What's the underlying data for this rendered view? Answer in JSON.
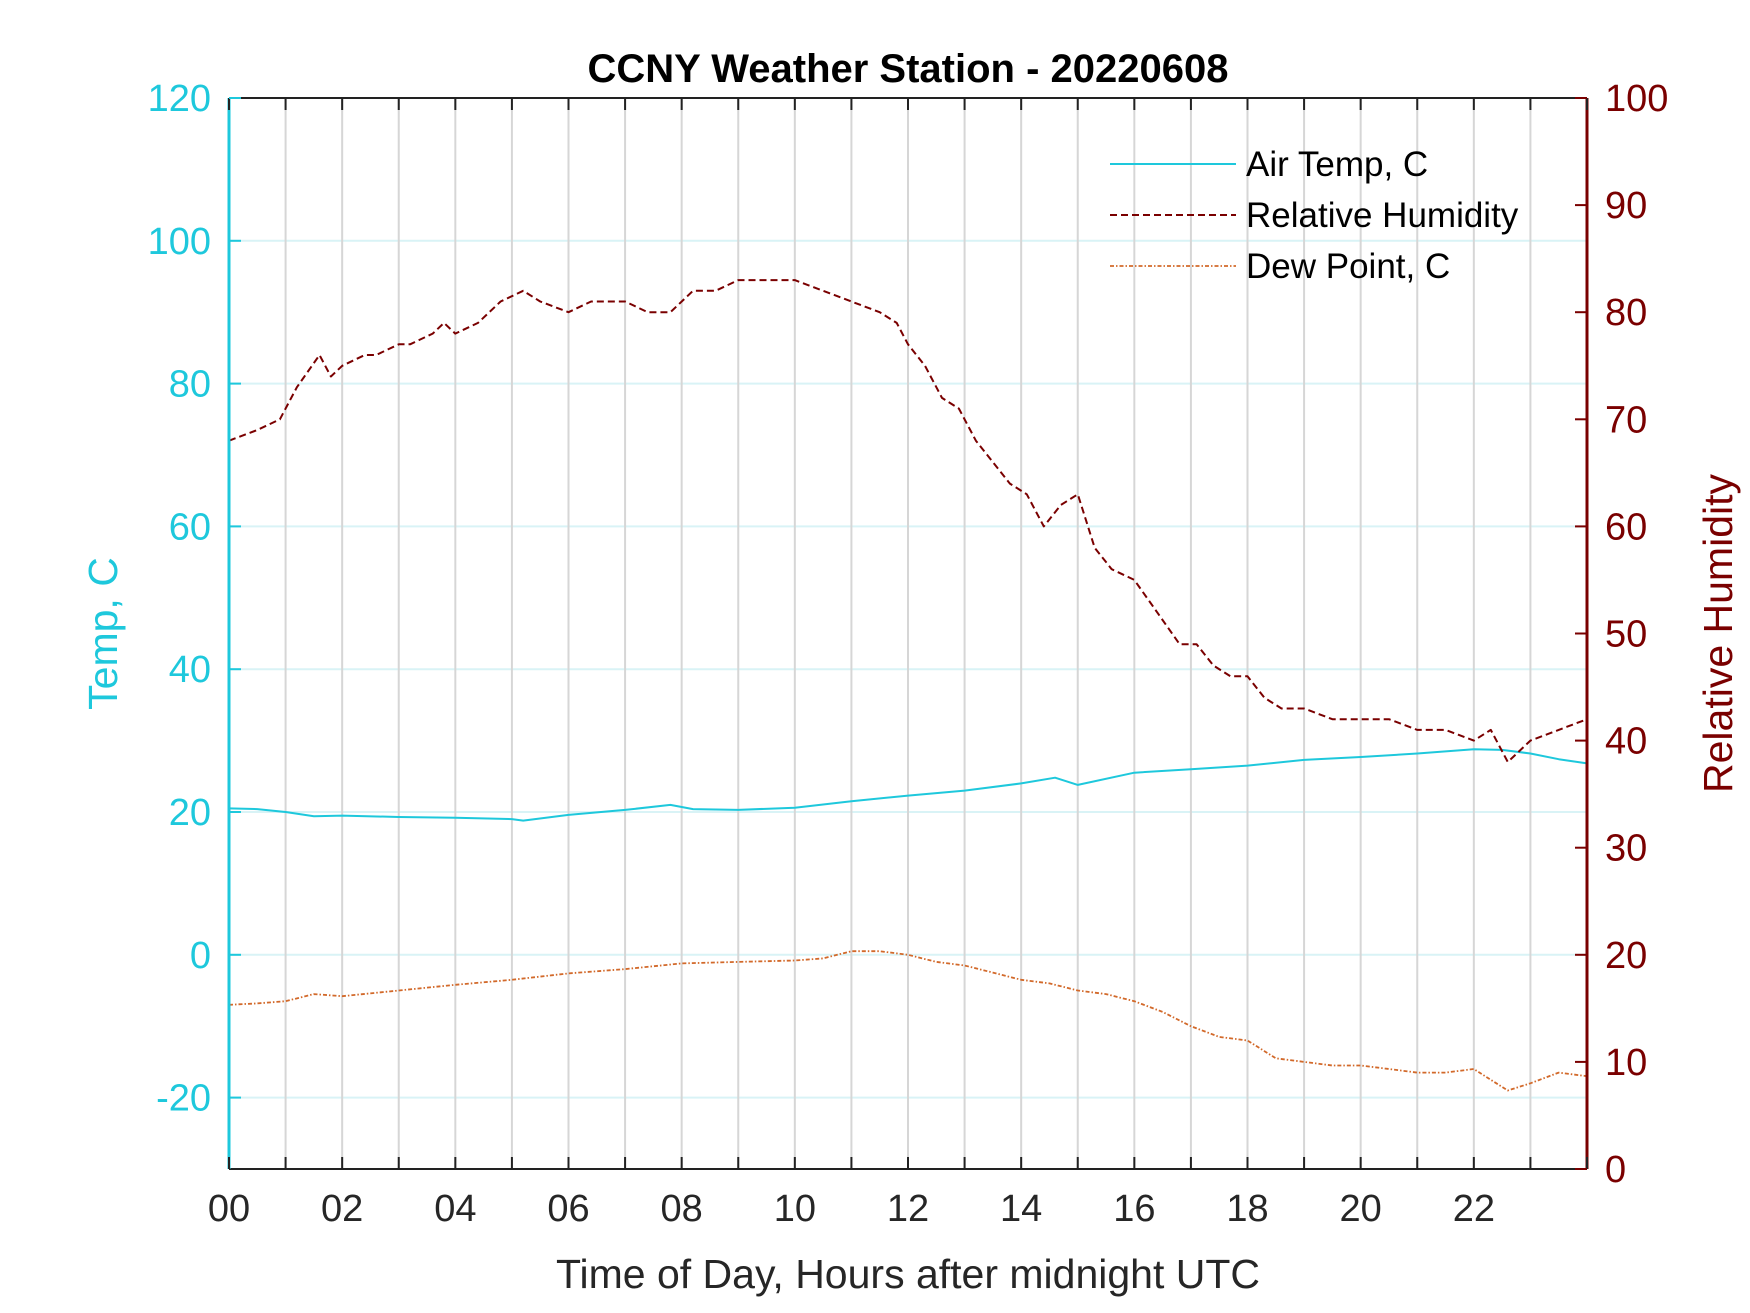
{
  "chart_data": {
    "type": "line",
    "title": "CCNY Weather Station - 20220608",
    "xlabel": "Time of Day, Hours after midnight UTC",
    "ylabel_left": "Temp, C",
    "ylabel_right": "Relative Humidity",
    "xlim": [
      0,
      24
    ],
    "ylim_left": [
      -30,
      120
    ],
    "ylim_right": [
      0,
      100
    ],
    "x_ticks": [
      0,
      2,
      4,
      6,
      8,
      10,
      12,
      14,
      16,
      18,
      20,
      22
    ],
    "x_tick_labels": [
      "00",
      "02",
      "04",
      "06",
      "08",
      "10",
      "12",
      "14",
      "16",
      "18",
      "20",
      "22"
    ],
    "y_left_ticks": [
      -20,
      0,
      20,
      40,
      60,
      80,
      100,
      120
    ],
    "y_left_tick_labels": [
      "-20",
      "0",
      "20",
      "40",
      "60",
      "80",
      "100",
      "120"
    ],
    "y_right_ticks": [
      0,
      10,
      20,
      30,
      40,
      50,
      60,
      70,
      80,
      90,
      100
    ],
    "y_right_tick_labels": [
      "0",
      "10",
      "20",
      "30",
      "40",
      "50",
      "60",
      "70",
      "80",
      "90",
      "100"
    ],
    "grid": true,
    "legend_position": "top-right",
    "colors": {
      "left_axis": "#1ec8dc",
      "right_axis": "#7a0000",
      "dew_point": "#d2692a",
      "grid_vertical": "#d6d6d6",
      "grid_horizontal": "#d9f3f6"
    },
    "series": [
      {
        "name": "Air Temp, C",
        "axis": "left",
        "style": "solid",
        "x": [
          0,
          0.5,
          1.0,
          1.5,
          2.0,
          3.0,
          4.0,
          5.0,
          5.2,
          6.0,
          7.0,
          7.8,
          8.2,
          9.0,
          10.0,
          11.0,
          12.0,
          13.0,
          14.0,
          14.6,
          15.0,
          16.0,
          17.0,
          18.0,
          19.0,
          20.0,
          21.0,
          22.0,
          22.5,
          23.0,
          23.5,
          24.0
        ],
        "values": [
          20.5,
          20.4,
          20.0,
          19.4,
          19.5,
          19.3,
          19.2,
          19.0,
          18.8,
          19.6,
          20.3,
          21.0,
          20.4,
          20.3,
          20.6,
          21.5,
          22.3,
          23.0,
          24.0,
          24.8,
          23.8,
          25.5,
          26.0,
          26.5,
          27.3,
          27.7,
          28.2,
          28.8,
          28.7,
          28.2,
          27.4,
          26.8
        ]
      },
      {
        "name": "Relative Humidity",
        "axis": "right",
        "style": "dashed",
        "x": [
          0,
          0.5,
          0.9,
          1.2,
          1.6,
          1.8,
          2.0,
          2.4,
          2.6,
          3.0,
          3.2,
          3.6,
          3.8,
          4.0,
          4.4,
          4.8,
          5.2,
          5.5,
          6.0,
          6.4,
          7.0,
          7.4,
          7.8,
          8.2,
          8.6,
          9.0,
          9.4,
          10.0,
          10.5,
          11.0,
          11.5,
          11.8,
          12.0,
          12.3,
          12.6,
          12.9,
          13.2,
          13.5,
          13.8,
          14.1,
          14.4,
          14.7,
          15.0,
          15.3,
          15.6,
          16.0,
          16.4,
          16.8,
          17.1,
          17.4,
          17.7,
          18.0,
          18.3,
          18.6,
          19.0,
          19.5,
          20.0,
          20.5,
          21.0,
          21.5,
          22.0,
          22.3,
          22.6,
          23.0,
          23.5,
          24.0
        ],
        "values": [
          68,
          69,
          70,
          73,
          76,
          74,
          75,
          76,
          76,
          77,
          77,
          78,
          79,
          78,
          79,
          81,
          82,
          81,
          80,
          81,
          81,
          80,
          80,
          82,
          82,
          83,
          83,
          83,
          82,
          81,
          80,
          79,
          77,
          75,
          72,
          71,
          68,
          66,
          64,
          63,
          60,
          62,
          63,
          58,
          56,
          55,
          52,
          49,
          49,
          47,
          46,
          46,
          44,
          43,
          43,
          42,
          42,
          42,
          41,
          41,
          40,
          41,
          38,
          40,
          41,
          42
        ]
      },
      {
        "name": "Dew Point, C",
        "axis": "left",
        "style": "dashdot",
        "x": [
          0,
          0.5,
          1.0,
          1.5,
          2.0,
          3.0,
          4.0,
          5.0,
          6.0,
          7.0,
          8.0,
          9.0,
          10.0,
          10.5,
          11.0,
          11.5,
          12.0,
          12.5,
          13.0,
          13.5,
          14.0,
          14.5,
          15.0,
          15.5,
          16.0,
          16.5,
          17.0,
          17.5,
          18.0,
          18.5,
          19.0,
          19.5,
          20.0,
          20.5,
          21.0,
          21.5,
          22.0,
          22.3,
          22.6,
          23.0,
          23.5,
          24.0
        ],
        "values": [
          -7.0,
          -6.8,
          -6.5,
          -5.5,
          -5.8,
          -5.0,
          -4.2,
          -3.5,
          -2.6,
          -2.0,
          -1.2,
          -1.0,
          -0.8,
          -0.5,
          0.5,
          0.5,
          0.0,
          -1.0,
          -1.5,
          -2.5,
          -3.5,
          -4.0,
          -5.0,
          -5.5,
          -6.5,
          -8.0,
          -10.0,
          -11.5,
          -12.0,
          -14.5,
          -15.0,
          -15.5,
          -15.5,
          -16.0,
          -16.5,
          -16.5,
          -16.0,
          -17.5,
          -19.0,
          -18.0,
          -16.5,
          -17.0
        ]
      }
    ]
  }
}
